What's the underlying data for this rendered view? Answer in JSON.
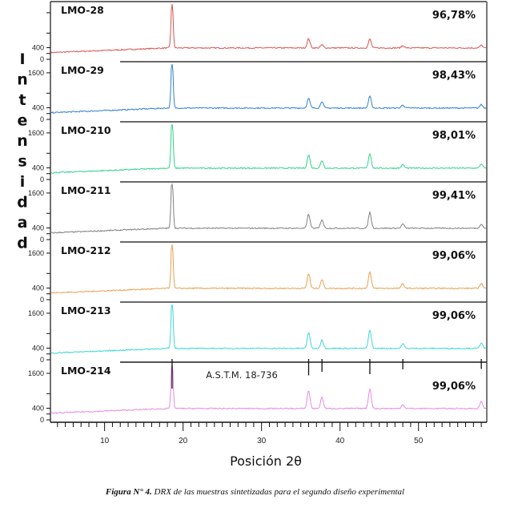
{
  "chart_data": {
    "type": "line",
    "title": "",
    "xlabel": "Posición 2θ",
    "ylabel": "Intensidad",
    "xlim": [
      3.1,
      58.7
    ],
    "x_ticks": [
      10,
      20,
      30,
      40,
      50
    ],
    "x_tick_labels": [
      "10",
      "20",
      "30",
      "40",
      "50"
    ],
    "panel_ylim": [
      0,
      1900
    ],
    "y_tick_labels_first_panel": [
      "400",
      "0"
    ],
    "y_tick_labels": [
      "1600",
      "400",
      "0"
    ],
    "grid": false,
    "legend": "none",
    "baseline": {
      "start": 230,
      "plateau": 390,
      "plateau_from": 18
    },
    "peaks_2theta": [
      18.6,
      36.0,
      37.7,
      43.8,
      48.0,
      58.0
    ],
    "series": [
      {
        "name": "LMO-28",
        "purity": "96,78%",
        "color": "#d9534f",
        "peak_heights": [
          1700,
          320,
          110,
          300,
          80,
          90
        ]
      },
      {
        "name": "LMO-29",
        "purity": "98,43%",
        "color": "#2f7fd0",
        "peak_heights": [
          1800,
          330,
          230,
          400,
          110,
          120
        ]
      },
      {
        "name": "LMO-210",
        "purity": "98,01%",
        "color": "#2fd38a",
        "peak_heights": [
          1850,
          460,
          260,
          500,
          120,
          150
        ]
      },
      {
        "name": "LMO-211",
        "purity": "99,41%",
        "color": "#808080",
        "peak_heights": [
          1900,
          480,
          300,
          540,
          150,
          150
        ]
      },
      {
        "name": "LMO-212",
        "purity": "99,06%",
        "color": "#e8a050",
        "peak_heights": [
          1800,
          510,
          300,
          560,
          160,
          180
        ]
      },
      {
        "name": "LMO-213",
        "purity": "99,06%",
        "color": "#3dd6d6",
        "peak_heights": [
          1850,
          560,
          300,
          640,
          160,
          200
        ]
      },
      {
        "name": "LMO-214",
        "purity": "99,06%",
        "color": "#e58be0",
        "peak_heights": [
          1850,
          620,
          380,
          680,
          140,
          240
        ]
      }
    ],
    "reference": {
      "label": "A.S.T.M. 18-736",
      "lines_2theta": [
        18.6,
        36.0,
        37.7,
        43.8,
        48.0,
        58.0
      ],
      "relative_intensity": [
        100,
        45,
        30,
        40,
        20,
        18
      ]
    }
  },
  "ylabel_letters": [
    "I",
    "n",
    "t",
    "e",
    "n",
    "s",
    "i",
    "d",
    "a",
    "d"
  ],
  "caption": {
    "prefix": "Figura N° 4.",
    "text": " DRX de las muestras sintetizadas para el segundo diseño experimental"
  }
}
